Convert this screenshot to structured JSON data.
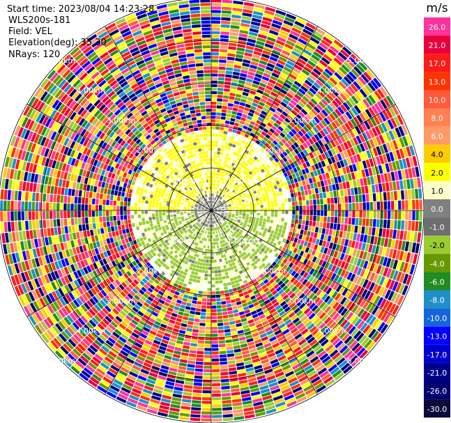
{
  "header": {
    "start_time": "Start time: 2023/08/04 14:23:28",
    "instrument": "WLS200s-181",
    "field": "Field: VEL",
    "elevation": "Elevation(deg): 35.30",
    "nrays": "NRays: 120"
  },
  "colorbar": {
    "unit": "m/s",
    "levels": [
      "26.0",
      "21.0",
      "17.0",
      "13.0",
      "10.0",
      "8.0",
      "6.0",
      "4.0",
      "2.0",
      "1.0",
      "0.0",
      "-1.0",
      "-2.0",
      "-4.0",
      "-6.0",
      "-8.0",
      "-10.0",
      "-13.0",
      "-17.0",
      "-21.0",
      "-26.0",
      "-30.0"
    ],
    "colors": [
      "#ff3399",
      "#e8003c",
      "#ff1a1a",
      "#ff3300",
      "#ff5a3a",
      "#ff8050",
      "#ff9966",
      "#ffcc00",
      "#ffff00",
      "#ffffcc",
      "#808080",
      "#6e6e6e",
      "#99cc33",
      "#669900",
      "#228b22",
      "#1e90c8",
      "#1464dc",
      "#0000ff",
      "#0000cd",
      "#00008b",
      "#000070",
      "#0a0a3a"
    ]
  },
  "chart_data": {
    "type": "heatmap",
    "subtype": "ppi_polar",
    "field": "VEL",
    "unit": "m/s",
    "nrays": 120,
    "elevation_deg": 35.3,
    "ring_labels": [
      "1.00km",
      "2.00km",
      "3.00km",
      "4.00km",
      "5.00km"
    ],
    "range_rings_km": [
      1,
      2,
      3,
      4,
      5
    ],
    "max_range_km": 5.0,
    "azimuth_lines_deg": [
      0,
      30,
      60,
      90,
      120,
      150,
      180,
      210,
      240,
      270,
      300,
      330
    ],
    "regions": [
      {
        "range_km": [
          0,
          0.4
        ],
        "velocity_ms": 0.0
      },
      {
        "range_km": [
          0.4,
          1.9
        ],
        "azimuth_deg": [
          270,
          90
        ],
        "velocity_ms": 1.5
      },
      {
        "range_km": [
          0.4,
          1.9
        ],
        "azimuth_deg": [
          90,
          270
        ],
        "velocity_ms": -2.0
      },
      {
        "range_km": [
          1.9,
          5.0
        ],
        "velocity_ms": "noise"
      }
    ],
    "colorbar_ticks": [
      26.0,
      21.0,
      17.0,
      13.0,
      10.0,
      8.0,
      6.0,
      4.0,
      2.0,
      1.0,
      0.0,
      -1.0,
      -2.0,
      -4.0,
      -6.0,
      -8.0,
      -10.0,
      -13.0,
      -17.0,
      -21.0,
      -26.0,
      -30.0
    ]
  }
}
